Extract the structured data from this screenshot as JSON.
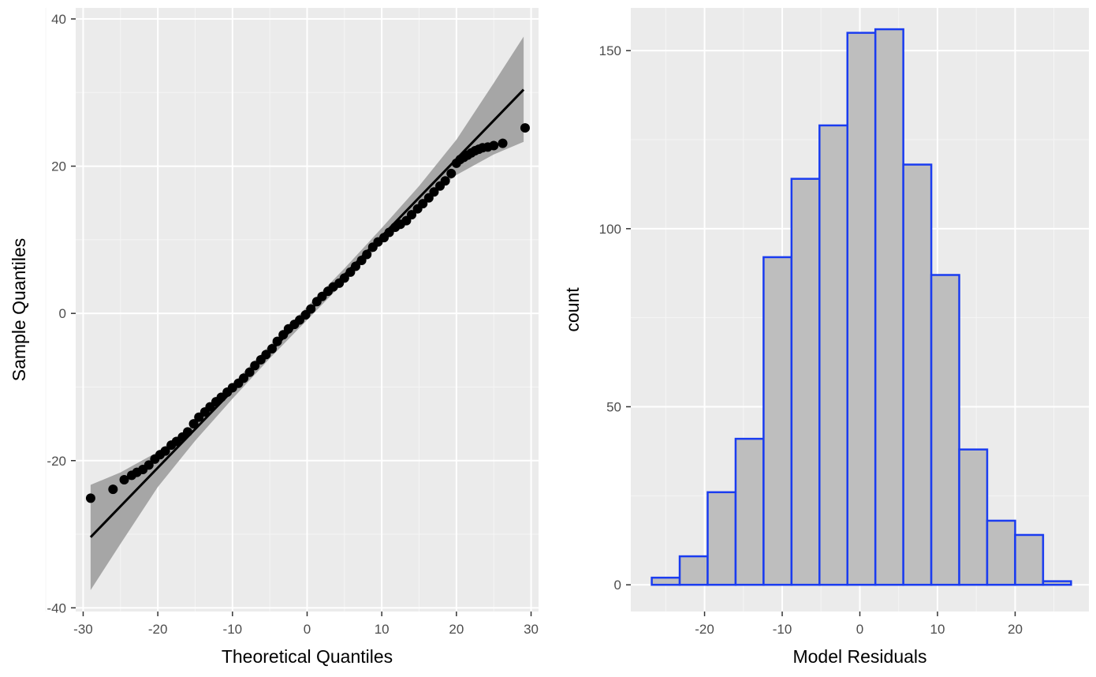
{
  "colors": {
    "panel_background": "#ebebeb",
    "grid_major": "#ffffff",
    "grid_minor": "#f5f5f5",
    "point": "#000000",
    "line": "#000000",
    "band": "#a6a6a6",
    "bar_fill": "#bebebe",
    "bar_outline": "#1a3cf0",
    "tick_text": "#4d4d4d"
  },
  "chart_data": [
    {
      "type": "scatter",
      "subtype": "qq-plot",
      "title": "",
      "xlabel": "Theoretical Quantiles",
      "ylabel": "Sample Quantiles",
      "xlim": [
        -31,
        31
      ],
      "ylim": [
        -40.5,
        41.5
      ],
      "x_ticks": [
        -30,
        -20,
        -10,
        0,
        10,
        20,
        30
      ],
      "x_tick_labels": [
        "-30",
        "-20",
        "-10",
        "0",
        "10",
        "20",
        "30"
      ],
      "y_ticks": [
        -40,
        -20,
        0,
        20,
        40
      ],
      "y_tick_labels": [
        "-40",
        "-20",
        "0",
        "20",
        "40"
      ],
      "grid": true,
      "reference_line": {
        "x": [
          -29,
          29
        ],
        "y": [
          -30.4,
          30.4
        ]
      },
      "confidence_band": {
        "x": [
          -29,
          -25,
          -20,
          -15,
          -10,
          -5,
          0,
          5,
          10,
          15,
          20,
          25,
          29
        ],
        "lower": [
          -37.6,
          -31.3,
          -23.6,
          -17.3,
          -11.6,
          -6.1,
          -0.9,
          4.3,
          9.6,
          14.9,
          18.8,
          21.6,
          23.3
        ],
        "upper": [
          -23.3,
          -21.6,
          -18.8,
          -14.9,
          -9.6,
          -4.3,
          0.9,
          6.1,
          11.6,
          17.3,
          23.6,
          31.3,
          37.6
        ]
      },
      "points": {
        "x": [
          -29,
          -26,
          -24.5,
          -23.5,
          -22.8,
          -22,
          -21.2,
          -20.4,
          -19.7,
          -19,
          -18.2,
          -17.5,
          -16.7,
          -16,
          -15.2,
          -14.5,
          -13.7,
          -13,
          -12.2,
          -11.5,
          -10.7,
          -10,
          -9.2,
          -8.5,
          -7.7,
          -7,
          -6.2,
          -5.5,
          -4.7,
          -4,
          -3.2,
          -2.5,
          -1.7,
          -1,
          -0.2,
          0.5,
          1.3,
          2,
          2.8,
          3.5,
          4.3,
          5,
          5.8,
          6.5,
          7.3,
          8,
          8.8,
          9.5,
          10.3,
          11,
          11.8,
          12.5,
          13.3,
          14,
          14.8,
          15.5,
          16.3,
          17,
          17.8,
          18.5,
          19.3,
          20,
          20.5,
          21,
          21.5,
          22,
          22.5,
          23,
          23.5,
          24.2,
          25,
          26.2,
          29.2
        ],
        "y": [
          -25.1,
          -23.9,
          -22.6,
          -22,
          -21.6,
          -21.2,
          -20.6,
          -19.8,
          -19.2,
          -18.7,
          -17.9,
          -17.4,
          -16.8,
          -16.1,
          -15,
          -14.1,
          -13.4,
          -12.7,
          -12,
          -11.4,
          -10.7,
          -10.1,
          -9.5,
          -8.8,
          -8,
          -7.1,
          -6.3,
          -5.6,
          -4.8,
          -3.8,
          -2.9,
          -2.1,
          -1.5,
          -0.9,
          -0.2,
          0.6,
          1.6,
          2.3,
          3,
          3.6,
          4.1,
          4.8,
          5.6,
          6.4,
          7.2,
          8,
          9,
          9.7,
          10.3,
          11,
          11.7,
          12.1,
          12.6,
          13.4,
          14.2,
          14.9,
          15.7,
          16.5,
          17.3,
          18,
          19,
          20.4,
          20.9,
          21.2,
          21.5,
          21.8,
          22.1,
          22.3,
          22.5,
          22.6,
          22.8,
          23.1,
          25.2
        ]
      }
    },
    {
      "type": "bar",
      "subtype": "histogram",
      "title": "",
      "xlabel": "Model Residuals",
      "ylabel": "count",
      "xlim": [
        -29.5,
        29.5
      ],
      "ylim": [
        -7.5,
        162
      ],
      "x_ticks": [
        -20,
        -10,
        0,
        10,
        20
      ],
      "x_tick_labels": [
        "-20",
        "-10",
        "0",
        "10",
        "20"
      ],
      "y_ticks": [
        0,
        50,
        100,
        150
      ],
      "y_tick_labels": [
        "0",
        "50",
        "100",
        "150"
      ],
      "grid": true,
      "bin_width": 3.6,
      "bins_left": [
        -26.8,
        -23.2,
        -19.6,
        -16,
        -12.4,
        -8.8,
        -5.2,
        -1.6,
        2,
        5.6,
        9.2,
        12.8,
        16.4,
        20,
        23.6
      ],
      "values": [
        2,
        8,
        26,
        41,
        92,
        114,
        129,
        155,
        156,
        118,
        87,
        38,
        18,
        14,
        1
      ]
    }
  ]
}
